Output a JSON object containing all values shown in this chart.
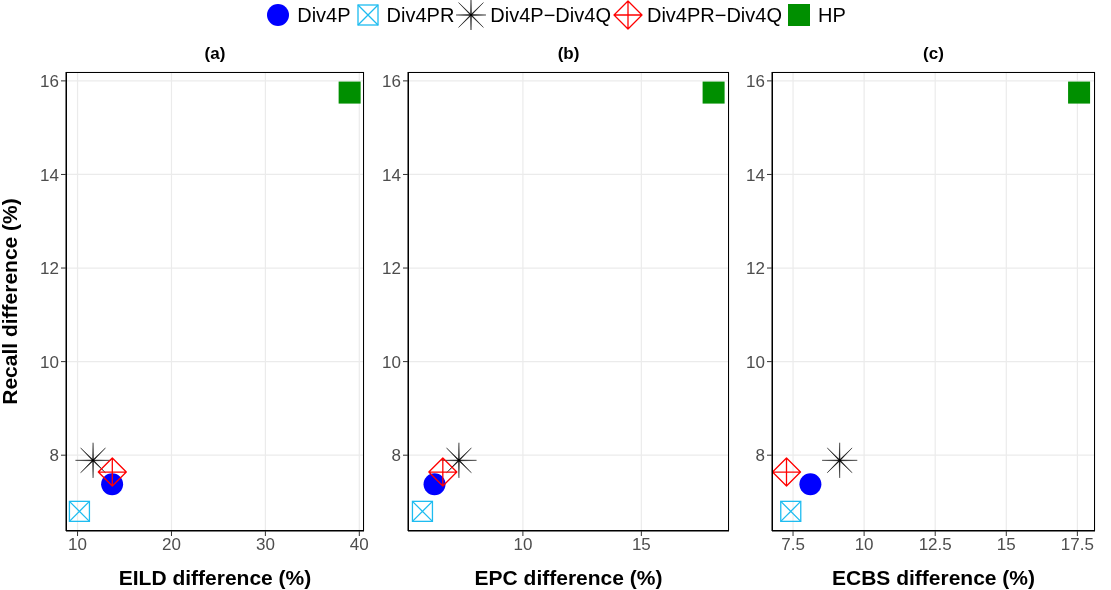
{
  "chart_data": [
    {
      "type": "scatter",
      "title": "(a)",
      "xlabel": "EILD difference (%)",
      "ylabel": "Recall difference (%)",
      "xlim": [
        8.77,
        40.5
      ],
      "xticks": [
        10,
        20,
        30,
        40
      ],
      "ylim": [
        6.38,
        16.19
      ],
      "yticks": [
        8,
        10,
        12,
        14,
        16
      ],
      "grid": true,
      "legend": "top",
      "series": [
        {
          "name": "Div4P",
          "color": "#0000ff",
          "marker": "circle",
          "x": [
            13.68
          ],
          "values": [
            7.38
          ]
        },
        {
          "name": "Div4PR",
          "color": "#1ebcf0",
          "marker": "square",
          "x": [
            10.2
          ],
          "values": [
            6.8
          ]
        },
        {
          "name": "Div4P−Div4Q",
          "color": "#000000",
          "marker": "star",
          "x": [
            11.65
          ],
          "values": [
            7.89
          ]
        },
        {
          "name": "Div4PR−Div4Q",
          "color": "#ff0000",
          "marker": "cross",
          "x": [
            13.7
          ],
          "values": [
            7.64
          ]
        },
        {
          "name": "HP",
          "color": "#008f00",
          "marker": "square",
          "x": [
            38.97
          ],
          "values": [
            15.75
          ]
        }
      ]
    },
    {
      "type": "scatter",
      "title": "(b)",
      "xlabel": "EPC difference (%)",
      "xlim": [
        5.15,
        18.7
      ],
      "xticks": [
        10,
        15
      ],
      "ylim": [
        6.38,
        16.19
      ],
      "yticks": [
        8,
        10,
        12,
        14,
        16
      ],
      "grid": true,
      "series": [
        {
          "color": "#0000ff",
          "marker": "circle",
          "x": [
            6.27
          ],
          "values": [
            7.38
          ]
        },
        {
          "color": "#1ebcf0",
          "marker": "square",
          "x": [
            5.76
          ],
          "values": [
            6.8
          ]
        },
        {
          "color": "#000000",
          "marker": "star",
          "x": [
            7.3
          ],
          "values": [
            7.89
          ]
        },
        {
          "color": "#ff0000",
          "marker": "cross",
          "x": [
            6.62
          ],
          "values": [
            7.64
          ]
        },
        {
          "color": "#008f00",
          "marker": "square",
          "x": [
            18.05
          ],
          "values": [
            15.75
          ]
        }
      ]
    },
    {
      "type": "scatter",
      "title": "(c)",
      "xlabel": "ECBS difference (%)",
      "xlim": [
        6.76,
        18.12
      ],
      "xticks": [
        7.5,
        10,
        12.5,
        15,
        17.5
      ],
      "ylim": [
        6.38,
        16.19
      ],
      "yticks": [
        8,
        10,
        12,
        14,
        16
      ],
      "grid": true,
      "series": [
        {
          "color": "#0000ff",
          "marker": "circle",
          "x": [
            8.11
          ],
          "values": [
            7.38
          ]
        },
        {
          "color": "#1ebcf0",
          "marker": "square",
          "x": [
            7.42
          ],
          "values": [
            6.8
          ]
        },
        {
          "color": "#000000",
          "marker": "star",
          "x": [
            9.14
          ],
          "values": [
            7.89
          ]
        },
        {
          "color": "#ff0000",
          "marker": "cross",
          "x": [
            7.27
          ],
          "values": [
            7.64
          ]
        },
        {
          "color": "#008f00",
          "marker": "square",
          "x": [
            17.56
          ],
          "values": [
            15.75
          ]
        }
      ]
    }
  ]
}
